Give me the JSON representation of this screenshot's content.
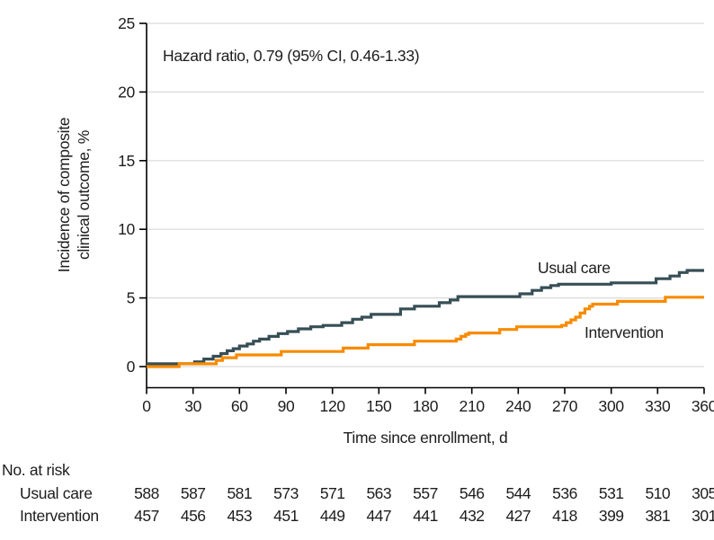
{
  "figure": {
    "annotation": "Hazard ratio, 0.79 (95% CI, 0.46-1.33)",
    "y_axis": {
      "title_line1": "Incidence of composite",
      "title_line2": "clinical outcome, %"
    },
    "x_axis": {
      "title": "Time since enrollment, d"
    },
    "colors": {
      "usual_care": "#374e55",
      "intervention": "#f78b00",
      "gridline": "#d9d9d9",
      "axis": "#000000",
      "text": "#1d1d1d"
    }
  },
  "chart_data": {
    "type": "line",
    "subtype": "step-after",
    "title": "",
    "xlabel": "Time since enrollment, d",
    "ylabel": "Incidence of composite clinical outcome, %",
    "annotation": "Hazard ratio, 0.79 (95% CI, 0.46-1.33)",
    "xlim": [
      0,
      360
    ],
    "ylim": [
      0,
      25
    ],
    "xticks": [
      0,
      30,
      60,
      90,
      120,
      150,
      180,
      210,
      240,
      270,
      300,
      330,
      360
    ],
    "yticks": [
      0,
      5,
      10,
      15,
      20,
      25
    ],
    "grid": "horizontal",
    "legend_position": "inline-labels",
    "series": [
      {
        "name": "Usual care",
        "color": "#374e55",
        "x": [
          0,
          31,
          37,
          43,
          48,
          52,
          56,
          60,
          65,
          69,
          73,
          79,
          85,
          91,
          98,
          106,
          114,
          126,
          133,
          139,
          145,
          164,
          173,
          189,
          196,
          201,
          241,
          249,
          255,
          261,
          266,
          300,
          329,
          338,
          344,
          349
        ],
        "y": [
          0.2,
          0.35,
          0.55,
          0.75,
          0.95,
          1.15,
          1.3,
          1.5,
          1.65,
          1.85,
          2.0,
          2.2,
          2.4,
          2.55,
          2.75,
          2.9,
          3.0,
          3.2,
          3.45,
          3.6,
          3.8,
          4.2,
          4.4,
          4.65,
          4.85,
          5.1,
          5.3,
          5.55,
          5.75,
          5.9,
          6.0,
          6.1,
          6.4,
          6.6,
          6.85,
          7.0
        ]
      },
      {
        "name": "Intervention",
        "color": "#f78b00",
        "x": [
          0,
          21,
          45,
          49,
          58,
          87,
          127,
          143,
          173,
          200,
          203,
          206,
          208,
          228,
          239,
          268,
          271,
          274,
          277,
          280,
          283,
          286,
          288,
          304,
          335
        ],
        "y": [
          0,
          0.2,
          0.45,
          0.65,
          0.85,
          1.1,
          1.35,
          1.6,
          1.85,
          2.0,
          2.2,
          2.35,
          2.45,
          2.7,
          2.9,
          3.0,
          3.2,
          3.4,
          3.6,
          3.9,
          4.2,
          4.4,
          4.55,
          4.75,
          5.05
        ]
      }
    ]
  },
  "risk_table": {
    "header": "No. at risk",
    "time_points": [
      0,
      30,
      60,
      90,
      120,
      150,
      180,
      210,
      240,
      270,
      300,
      330,
      360
    ],
    "rows": [
      {
        "label": "Usual care",
        "values": [
          588,
          587,
          581,
          573,
          571,
          563,
          557,
          546,
          544,
          536,
          531,
          510,
          305
        ]
      },
      {
        "label": "Intervention",
        "values": [
          457,
          456,
          453,
          451,
          449,
          447,
          441,
          432,
          427,
          418,
          399,
          381,
          301
        ]
      }
    ]
  }
}
